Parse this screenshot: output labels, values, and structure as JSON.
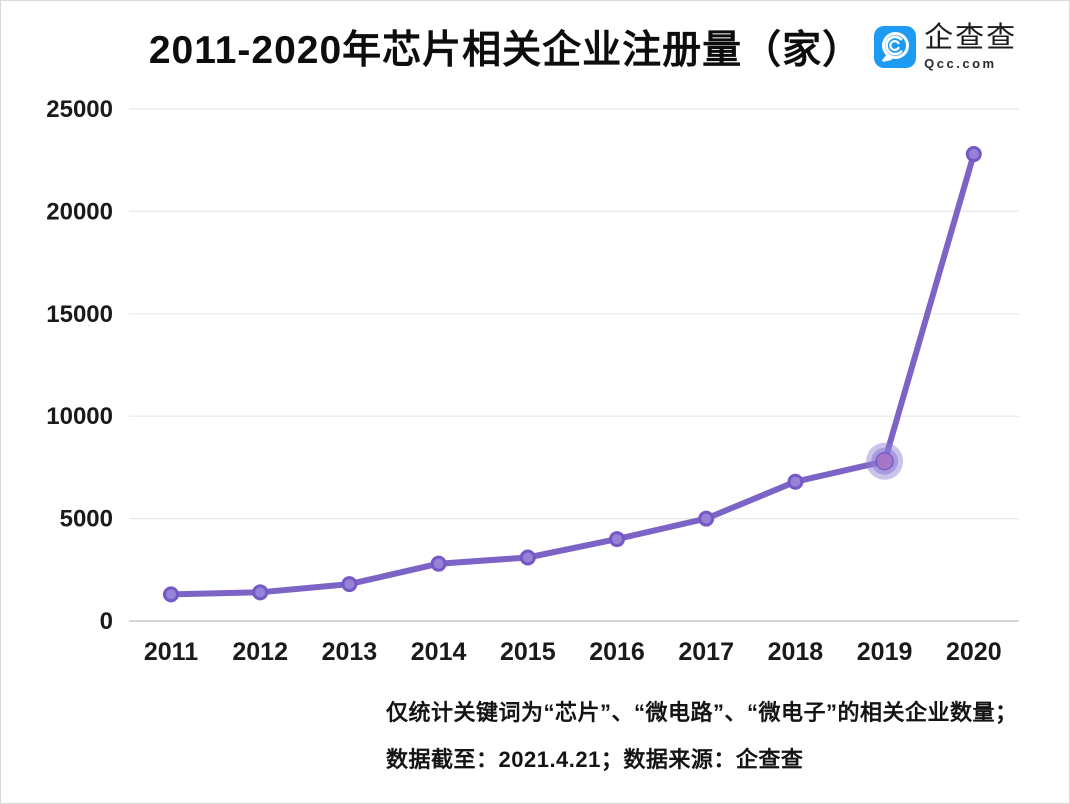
{
  "header": {
    "title": "2011-2020年芯片相关企业注册量（家）",
    "logo": {
      "icon": "qcc-logo-icon",
      "brand_cn": "企查查",
      "brand_en": "Qcc.com",
      "brand_color": "#1d9bf2"
    }
  },
  "chart_data": {
    "type": "line",
    "title": "2011-2020年芯片相关企业注册量（家）",
    "categories": [
      "2011",
      "2012",
      "2013",
      "2014",
      "2015",
      "2016",
      "2017",
      "2018",
      "2019",
      "2020"
    ],
    "series": [
      {
        "name": "芯片相关企业注册量（家）",
        "values": [
          1300,
          1400,
          1800,
          2800,
          3100,
          4000,
          5000,
          6800,
          7800,
          22800
        ]
      }
    ],
    "xlabel": "",
    "ylabel": "",
    "ylim": [
      0,
      25000
    ],
    "yticks": [
      0,
      5000,
      10000,
      15000,
      20000,
      25000
    ],
    "grid": true,
    "legend_position": "none",
    "highlight_category": "2019",
    "highlight_index": 8,
    "colors": {
      "line": "#7c63c6",
      "marker_fill": "#9683d8",
      "marker_stroke": "#7459c6",
      "highlight_halo": "#8d7bd4",
      "highlight_core": "#a874c6",
      "gridline": "#e8e8e8",
      "baseline": "#c9c9c9",
      "tick_label": "#1a1a1a"
    }
  },
  "footnote": {
    "line1": "仅统计关键词为“芯片”、“微电路”、“微电子”的相关企业数量；",
    "line2": "数据截至：2021.4.21；数据来源：企查查"
  }
}
